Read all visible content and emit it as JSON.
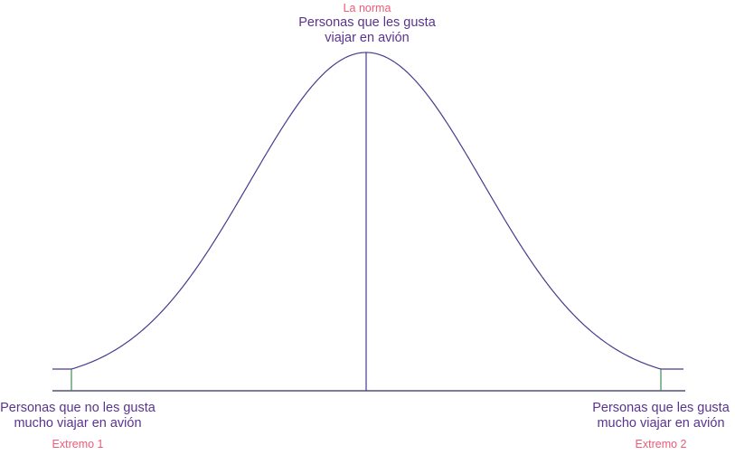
{
  "center": {
    "tag": "La norma",
    "label_line1": "Personas que les gusta",
    "label_line2": "viajar en avión"
  },
  "left": {
    "label_line1": "Personas que no les gusta",
    "label_line2": "mucho viajar en avión",
    "tag": "Extremo 1"
  },
  "right": {
    "label_line1": "Personas que les gusta",
    "label_line2": "mucho viajar en avión",
    "tag": "Extremo 2"
  },
  "colors": {
    "curve": "#4b3a8c",
    "axis": "#2f2f5a",
    "tick": "#3f8a52",
    "purple_text": "#5a338f",
    "pink_text": "#ee5a77"
  }
}
